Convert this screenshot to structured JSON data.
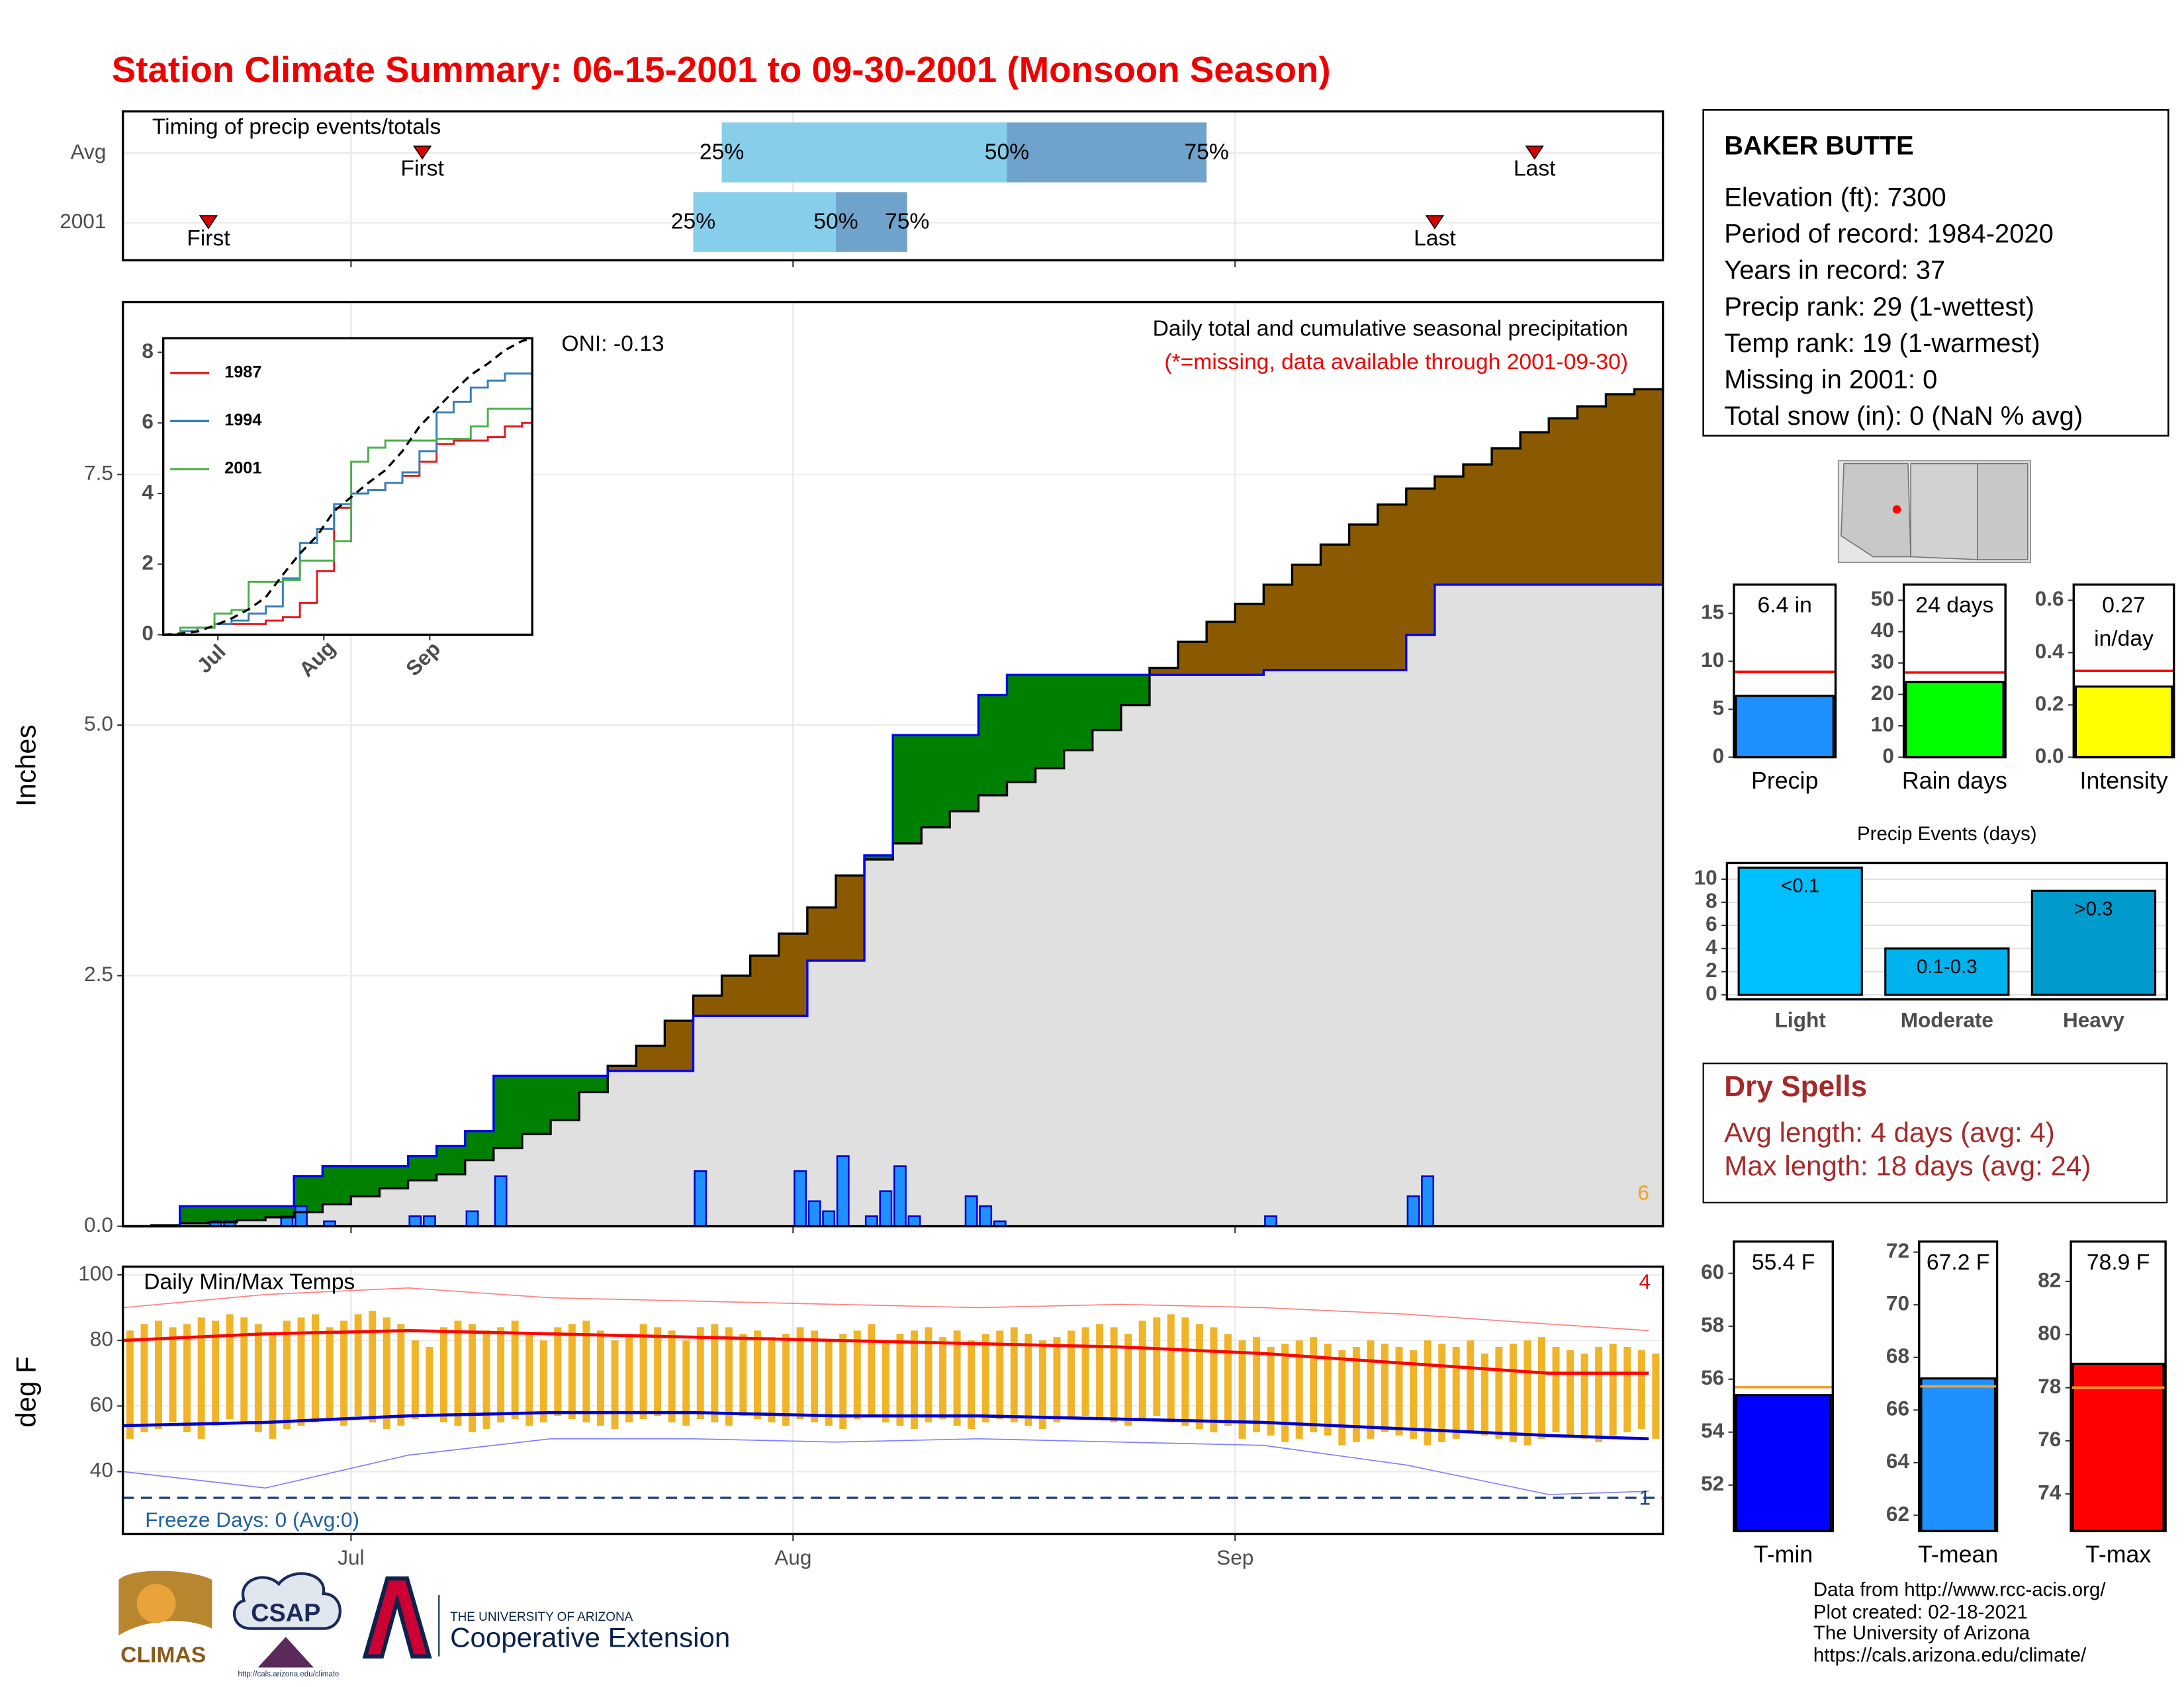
{
  "title": "Station Climate Summary: 06-15-2001 to 09-30-2001 (Monsoon Season)",
  "chart_data": [
    {
      "type": "timing",
      "title": "Timing of precip events/totals",
      "categories": [
        "Avg",
        "2001"
      ],
      "series": [
        {
          "name": "First",
          "color": "#dd0000",
          "values": [
            21,
            6
          ]
        },
        {
          "name": "25%",
          "color": "#87ceeb",
          "values": [
            42,
            40
          ]
        },
        {
          "name": "50%",
          "color": "#6fa3cb",
          "values": [
            62,
            50
          ]
        },
        {
          "name": "75%",
          "values": [
            76,
            55
          ]
        },
        {
          "name": "Last",
          "color": "#dd0000",
          "values": [
            99,
            92
          ]
        }
      ],
      "xlim": [
        0,
        108
      ],
      "xticks": [
        16,
        47,
        78
      ],
      "grid": true
    },
    {
      "type": "cumulative",
      "title": "Daily total and cumulative seasonal precipitation",
      "subtitle": "(*=missing, data available through 2001-09-30)",
      "ylabel": "Inches",
      "annotations": [
        "ONI: -0.13",
        "6"
      ],
      "below_color": "#e0e0e0",
      "x": [
        0,
        2,
        4,
        6,
        8,
        10,
        12,
        14,
        16,
        18,
        20,
        22,
        24,
        26,
        28,
        30,
        32,
        34,
        36,
        38,
        40,
        42,
        44,
        46,
        48,
        50,
        52,
        54,
        56,
        58,
        60,
        62,
        64,
        66,
        68,
        70,
        72,
        74,
        76,
        78,
        80,
        82,
        84,
        86,
        88,
        90,
        92,
        94,
        96,
        98,
        100,
        102,
        104,
        106,
        108
      ],
      "series": [
        {
          "color": "#000000",
          "fill": "#8b5a00",
          "values": [
            0,
            0.01,
            0.03,
            0.04,
            0.06,
            0.09,
            0.14,
            0.22,
            0.3,
            0.38,
            0.46,
            0.52,
            0.66,
            0.78,
            0.92,
            1.06,
            1.34,
            1.6,
            1.8,
            2.05,
            2.3,
            2.5,
            2.7,
            2.92,
            3.18,
            3.5,
            3.66,
            3.82,
            3.98,
            4.14,
            4.3,
            4.43,
            4.57,
            4.75,
            4.95,
            5.2,
            5.57,
            5.83,
            6.03,
            6.21,
            6.4,
            6.6,
            6.8,
            7,
            7.2,
            7.36,
            7.48,
            7.6,
            7.76,
            7.92,
            8.06,
            8.18,
            8.3,
            8.35,
            8.4
          ]
        },
        {
          "color": "#0000ff",
          "fill": "#008000",
          "values": [
            0,
            0,
            0.2,
            0.2,
            0.2,
            0.2,
            0.5,
            0.6,
            0.6,
            0.6,
            0.7,
            0.8,
            0.95,
            1.5,
            1.5,
            1.5,
            1.5,
            1.55,
            1.55,
            1.55,
            2.1,
            2.1,
            2.1,
            2.1,
            2.65,
            2.65,
            3.7,
            4.9,
            4.9,
            4.9,
            5.3,
            5.5,
            5.5,
            5.5,
            5.5,
            5.5,
            5.5,
            5.5,
            5.5,
            5.5,
            5.55,
            5.55,
            5.55,
            5.55,
            5.55,
            5.9,
            6.4,
            6.4,
            6.4,
            6.4,
            6.4,
            6.4,
            6.4,
            6.4,
            6.4
          ]
        }
      ],
      "bars": {
        "color": "#1e90ff",
        "x": [
          6,
          7,
          11,
          12,
          14,
          20,
          21,
          24,
          26,
          40,
          47,
          48,
          49,
          50,
          52,
          53,
          54,
          55,
          59,
          60,
          61,
          80,
          90,
          91
        ],
        "values": [
          0.05,
          0.05,
          0.1,
          0.2,
          0.05,
          0.1,
          0.1,
          0.15,
          0.5,
          0.55,
          0.55,
          0.25,
          0.15,
          0.7,
          0.1,
          0.35,
          0.6,
          0.1,
          0.3,
          0.2,
          0.05,
          0.1,
          0.3,
          0.5
        ]
      },
      "xlim": [
        0,
        108
      ],
      "xticks": [
        16,
        47,
        78
      ],
      "ylim": [
        0,
        9.22
      ],
      "yticks": [
        {
          "value": 0,
          "label": "0.0"
        },
        2.5,
        {
          "value": 5,
          "label": "5.0"
        },
        7.5
      ],
      "grid": true
    },
    {
      "type": "inset_lines",
      "legend": "top-left",
      "x": [
        0,
        5,
        10,
        15,
        20,
        25,
        30,
        35,
        40,
        45,
        50,
        55,
        60,
        65,
        70,
        75,
        80,
        85,
        90,
        95,
        100,
        105,
        108
      ],
      "series": [
        {
          "name": "1987",
          "color": "#e41a1c",
          "values": [
            0,
            0.1,
            0.2,
            0.3,
            0.3,
            0.3,
            0.4,
            0.5,
            0.9,
            1.8,
            3.6,
            4,
            4.1,
            4.3,
            4.5,
            4.9,
            5.4,
            5.5,
            5.5,
            5.6,
            5.9,
            6,
            6.3
          ]
        },
        {
          "name": "1994",
          "color": "#377eb8",
          "values": [
            0,
            0.1,
            0.2,
            0.3,
            0.4,
            0.6,
            0.8,
            1.6,
            2.6,
            3,
            3.7,
            4,
            4.1,
            4.3,
            4.6,
            5.2,
            6.3,
            6.6,
            7,
            7.2,
            7.4,
            7.4,
            7.4
          ]
        },
        {
          "name": "2001",
          "color": "#4daf4a",
          "values": [
            0,
            0.2,
            0.2,
            0.6,
            0.7,
            1.5,
            1.5,
            1.55,
            2.1,
            2.1,
            2.65,
            4.9,
            5.3,
            5.5,
            5.5,
            5.5,
            5.55,
            5.55,
            5.9,
            6.4,
            6.4,
            6.4,
            6.4
          ]
        },
        {
          "color": "#000000",
          "dashed": true,
          "values": [
            0,
            0.03,
            0.09,
            0.26,
            0.46,
            0.72,
            1.06,
            1.7,
            2.3,
            2.8,
            3.5,
            3.9,
            4.3,
            4.66,
            5.2,
            5.9,
            6.4,
            6.9,
            7.36,
            7.68,
            8.06,
            8.32,
            8.4
          ]
        }
      ],
      "xlim": [
        0,
        108
      ],
      "xticks": [
        {
          "value": 16,
          "label": "Jul"
        },
        {
          "value": 47,
          "label": "Aug"
        },
        {
          "value": 78,
          "label": "Sep"
        }
      ],
      "ylim": [
        0,
        8.4
      ],
      "yticks": [
        0,
        2,
        4,
        6,
        8
      ]
    },
    {
      "type": "temps",
      "title": "Daily Min/Max Temps",
      "ylabel": "deg F",
      "annotations": [
        "Freeze Days: 0 (Avg:0)",
        "4",
        "1"
      ],
      "freeze_threshold": 32,
      "daily": {
        "color": "#f0b429",
        "max": [
          83,
          85,
          86,
          84,
          85,
          87,
          86,
          88,
          87,
          85,
          82,
          86,
          87,
          88,
          84,
          86,
          88,
          89,
          87,
          85,
          80,
          78,
          84,
          86,
          85,
          83,
          84,
          86,
          82,
          80,
          84,
          85,
          86,
          83,
          80,
          82,
          85,
          84,
          83,
          80,
          84,
          85,
          84,
          82,
          83,
          81,
          82,
          84,
          83,
          80,
          82,
          83,
          85,
          80,
          82,
          83,
          84,
          81,
          83,
          80,
          82,
          83,
          84,
          82,
          80,
          81,
          83,
          84,
          85,
          84,
          82,
          86,
          87,
          88,
          87,
          85,
          84,
          82,
          80,
          81,
          78,
          79,
          80,
          81,
          79,
          77,
          78,
          80,
          79,
          78,
          77,
          80,
          79,
          78,
          80,
          76,
          78,
          79,
          80,
          81,
          78,
          77,
          76,
          78,
          79,
          78,
          77,
          76
        ],
        "min": [
          50,
          52,
          53,
          55,
          52,
          50,
          54,
          56,
          55,
          52,
          50,
          53,
          54,
          55,
          56,
          54,
          57,
          55,
          53,
          54,
          56,
          57,
          55,
          54,
          52,
          53,
          55,
          56,
          54,
          55,
          57,
          56,
          55,
          54,
          53,
          55,
          56,
          57,
          55,
          54,
          56,
          55,
          54,
          57,
          56,
          55,
          54,
          56,
          55,
          54,
          53,
          56,
          57,
          55,
          54,
          53,
          55,
          56,
          54,
          53,
          55,
          56,
          55,
          54,
          53,
          55,
          56,
          57,
          56,
          55,
          54,
          56,
          57,
          55,
          54,
          53,
          52,
          54,
          50,
          52,
          51,
          49,
          50,
          52,
          51,
          48,
          49,
          50,
          52,
          51,
          50,
          48,
          49,
          50,
          52,
          51,
          50,
          49,
          48,
          50,
          52,
          51,
          50,
          49,
          51,
          52,
          53,
          50
        ]
      },
      "lines": [
        {
          "color": "#ff0000",
          "width": 2.2,
          "x": [
            0,
            10,
            20,
            30,
            40,
            50,
            60,
            70,
            80,
            90,
            100,
            107
          ],
          "values": [
            80,
            82,
            83,
            82,
            81,
            80,
            79,
            78,
            76,
            73,
            70,
            70
          ]
        },
        {
          "color": "#0000cd",
          "width": 2.2,
          "x": [
            0,
            10,
            20,
            30,
            40,
            50,
            60,
            70,
            80,
            90,
            100,
            107
          ],
          "values": [
            54,
            55,
            57,
            58,
            58,
            57,
            57,
            56,
            55,
            53,
            51,
            50
          ]
        },
        {
          "color": "#ff8080",
          "width": 0.8,
          "x": [
            0,
            10,
            20,
            30,
            40,
            50,
            60,
            70,
            80,
            90,
            100,
            107
          ],
          "values": [
            90,
            94,
            96,
            93,
            92,
            91,
            90,
            91,
            90,
            88,
            85,
            83
          ]
        },
        {
          "color": "#8080ff",
          "width": 0.8,
          "x": [
            0,
            10,
            20,
            30,
            40,
            50,
            60,
            70,
            80,
            90,
            100,
            107
          ],
          "values": [
            40,
            35,
            45,
            50,
            50,
            49,
            50,
            49,
            48,
            42,
            33,
            34
          ]
        }
      ],
      "xlim": [
        0,
        108
      ],
      "xticks": [
        {
          "value": 16,
          "label": "Jul"
        },
        {
          "value": 47,
          "label": "Aug"
        },
        {
          "value": 78,
          "label": "Sep"
        }
      ],
      "ylim": [
        21,
        102.5
      ],
      "yticks": [
        40,
        60,
        80,
        100
      ],
      "grid": true
    },
    {
      "type": "single_bar",
      "categories": [
        "Precip"
      ],
      "values": [
        6.4
      ],
      "value_labels": [
        "6.4 in"
      ],
      "average": 8.9,
      "color": "#1e90ff",
      "average_color": "#ff0000",
      "ylim": [
        0,
        18
      ],
      "yticks": [
        0,
        5,
        10,
        15
      ]
    },
    {
      "type": "single_bar",
      "categories": [
        "Rain days"
      ],
      "values": [
        24
      ],
      "value_labels": [
        "24 days"
      ],
      "average": 27,
      "color": "#00ff00",
      "average_color": "#ff0000",
      "ylim": [
        0,
        55
      ],
      "yticks": [
        0,
        10,
        20,
        30,
        40,
        50
      ]
    },
    {
      "type": "single_bar",
      "categories": [
        "Intensity"
      ],
      "values": [
        0.27
      ],
      "value_labels": [
        "0.27 in/day"
      ],
      "average": 0.33,
      "color": "#ffff00",
      "average_color": "#ff0000",
      "ylim": [
        0,
        0.66
      ],
      "yticks": [
        {
          "value": 0,
          "label": "0.0"
        },
        0.2,
        0.4,
        0.6
      ]
    },
    {
      "type": "bar",
      "title": "Precip Events (days)",
      "categories": [
        "Light",
        "Moderate",
        "Heavy"
      ],
      "values": [
        11,
        4,
        9
      ],
      "value_labels": [
        "<0.1",
        "0.1-0.3",
        ">0.3"
      ],
      "colors": [
        "#00bfff",
        "#00b2ee",
        "#009acd"
      ],
      "ylim": [
        -0.4,
        11.4
      ],
      "yticks": [
        0,
        2,
        4,
        6,
        8,
        10
      ],
      "grid": true
    },
    {
      "type": "single_bar",
      "categories": [
        "T-min"
      ],
      "values": [
        55.4
      ],
      "value_labels": [
        "55.4 F"
      ],
      "average": 55.7,
      "color": "#0000ff",
      "average_color": "#f0a030",
      "ylim": [
        50.26,
        61.2
      ],
      "yticks": [
        52,
        54,
        56,
        58,
        60
      ]
    },
    {
      "type": "single_bar",
      "categories": [
        "T-mean"
      ],
      "values": [
        67.2
      ],
      "value_labels": [
        "67.2 F"
      ],
      "average": 66.9,
      "color": "#1e90ff",
      "average_color": "#f0a030",
      "ylim": [
        61.4,
        72.4
      ],
      "yticks": [
        62,
        64,
        66,
        68,
        70,
        72
      ]
    },
    {
      "type": "single_bar",
      "categories": [
        "T-max"
      ],
      "values": [
        78.9
      ],
      "value_labels": [
        "78.9 F"
      ],
      "average": 78,
      "color": "#ff0000",
      "average_color": "#f0a030",
      "ylim": [
        72.6,
        83.5
      ],
      "yticks": [
        74,
        76,
        78,
        80,
        82
      ]
    }
  ],
  "station": {
    "name": "BAKER BUTTE",
    "lines": [
      "Elevation (ft): 7300",
      "Period of record: 1984-2020",
      "Years in record: 37",
      "Precip rank: 29 (1-wettest)",
      "Temp rank: 19 (1-warmest)",
      "Missing in 2001: 0",
      "Total snow (in): 0 (NaN % avg)"
    ]
  },
  "dry_spells": {
    "title": "Dry Spells",
    "lines": [
      "Avg length: 4 days (avg: 4)",
      "Max length: 18 days (avg: 24)"
    ]
  },
  "footer": {
    "logos": [
      "CLIMAS",
      "CSAP",
      "http://cals.arizona.edu/climate",
      "THE UNIVERSITY OF ARIZONA",
      "Cooperative Extension"
    ],
    "credits": [
      "Data from http://www.rcc-acis.org/",
      "Plot created: 02-18-2021",
      "The University of Arizona",
      "https://cals.arizona.edu/climate/"
    ]
  }
}
